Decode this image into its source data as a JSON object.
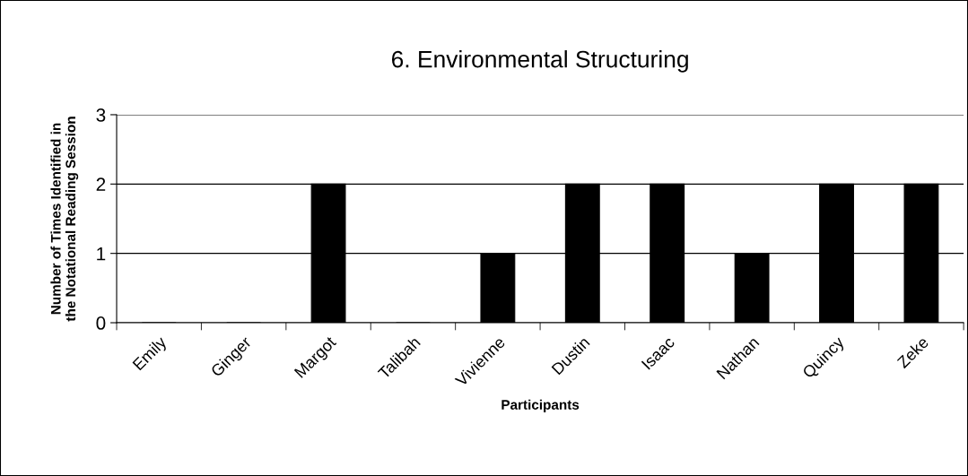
{
  "chart_data": {
    "type": "bar",
    "title": "6. Environmental Structuring",
    "xlabel": "Participants",
    "ylabel": "Number of Times Identified in\nthe Notational Reading Session",
    "categories": [
      "Emily",
      "Ginger",
      "Margot",
      "Talibah",
      "Vivienne",
      "Dustin",
      "Isaac",
      "Nathan",
      "Quincy",
      "Zeke"
    ],
    "values": [
      0,
      0,
      2,
      0,
      1,
      2,
      2,
      1,
      2,
      2
    ],
    "color": "#000000",
    "ylim": [
      0,
      3
    ],
    "yticks": [
      0,
      1,
      2,
      3
    ],
    "grid": "y",
    "legend": false
  }
}
